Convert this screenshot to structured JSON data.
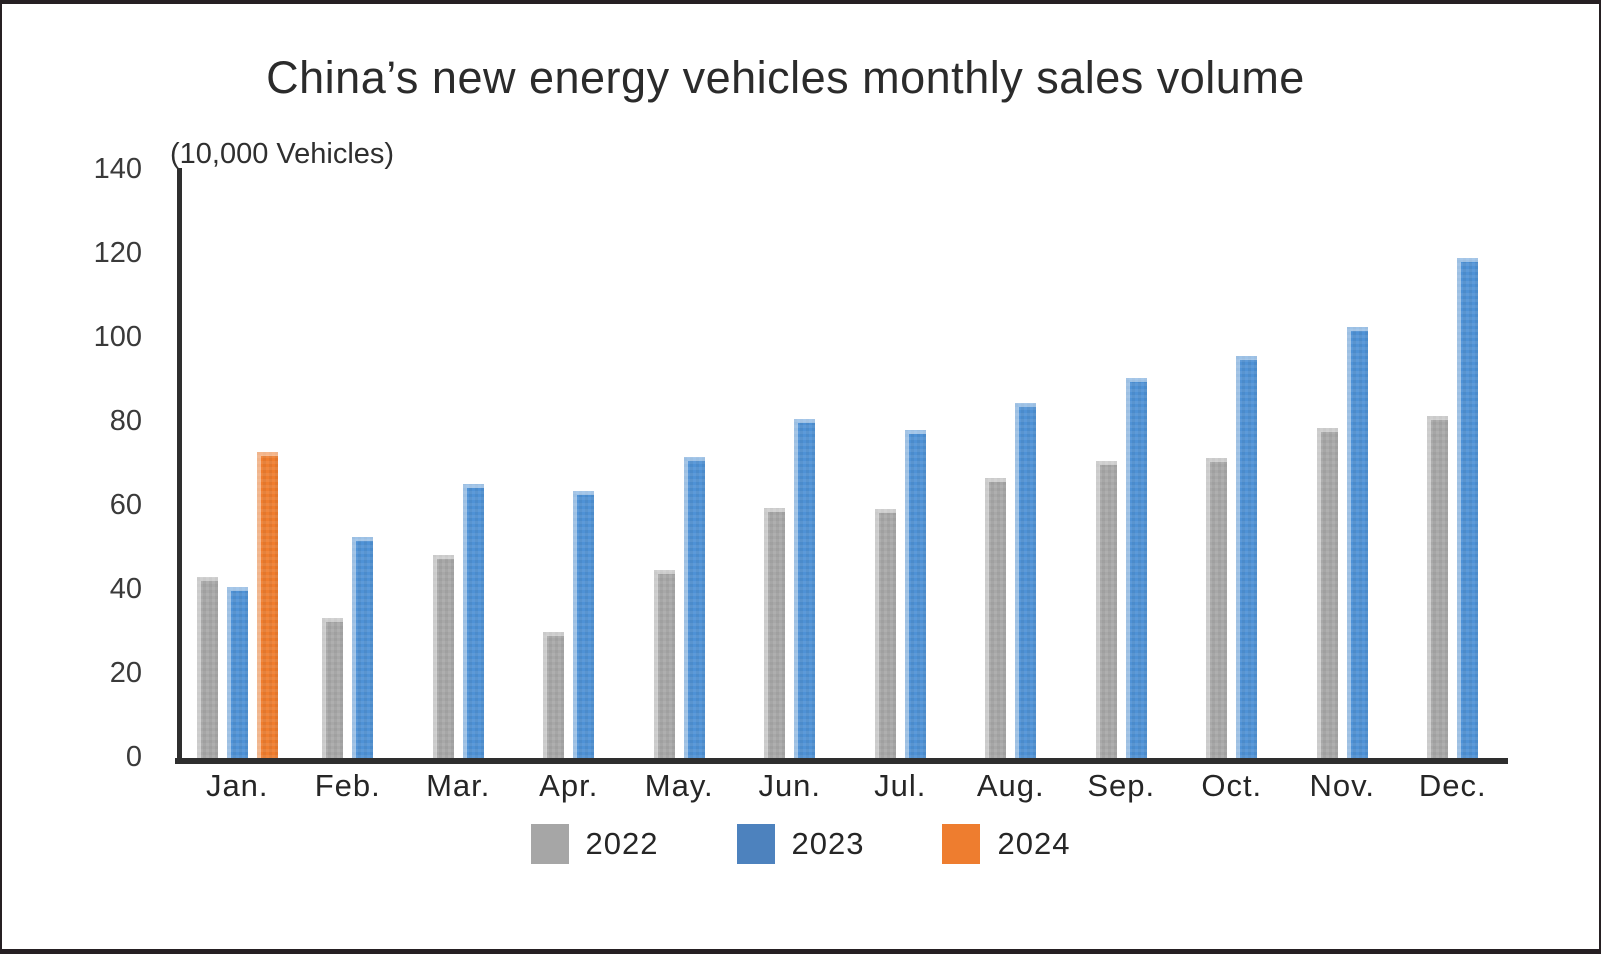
{
  "chart_data": {
    "type": "bar",
    "title": "China’s new energy vehicles monthly sales volume",
    "unit_label": "(10,000 Vehicles)",
    "categories": [
      "Jan.",
      "Feb.",
      "Mar.",
      "Apr.",
      "May.",
      "Jun.",
      "Jul.",
      "Aug.",
      "Sep.",
      "Oct.",
      "Nov.",
      "Dec."
    ],
    "series": [
      {
        "name": "2022",
        "bar_color": "#a8a8a8",
        "legend_color": "#a6a6a6",
        "values": [
          43.1,
          33.4,
          48.4,
          29.9,
          44.7,
          59.6,
          59.3,
          66.6,
          70.8,
          71.4,
          78.6,
          81.4
        ]
      },
      {
        "name": "2023",
        "bar_color": "#4f92d6",
        "legend_color": "#4d82be",
        "values": [
          40.8,
          52.5,
          65.3,
          63.6,
          71.7,
          80.6,
          78.0,
          84.6,
          90.4,
          95.6,
          102.6,
          119.1
        ]
      },
      {
        "name": "2024",
        "bar_color": "#ef7d2e",
        "legend_color": "#ee7d2f",
        "values": [
          72.9,
          null,
          null,
          null,
          null,
          null,
          null,
          null,
          null,
          null,
          null,
          null
        ]
      }
    ],
    "ylim": [
      0,
      140
    ],
    "yticks": [
      0,
      20,
      40,
      60,
      80,
      100,
      120,
      140
    ],
    "grid": false,
    "legend_position": "bottom",
    "axis_color": "#2e2e2e"
  }
}
